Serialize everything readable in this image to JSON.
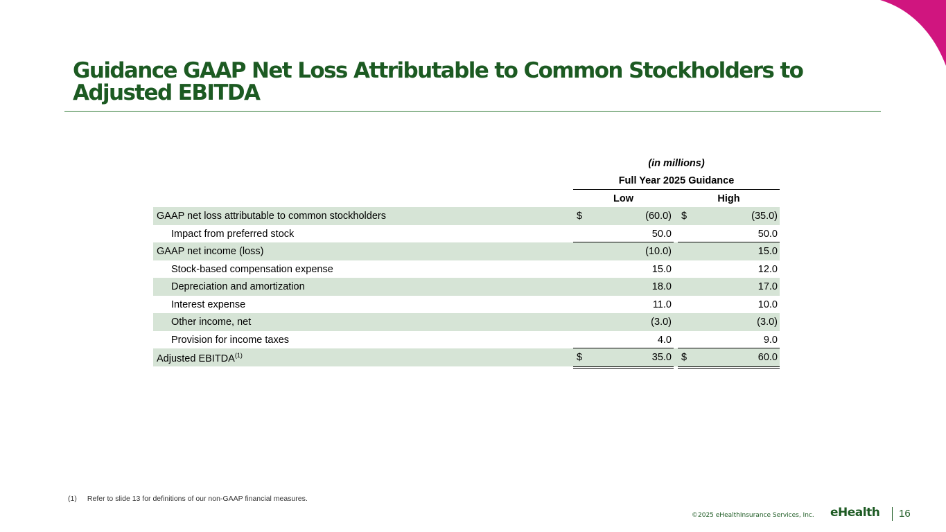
{
  "page": {
    "title": "Guidance GAAP Net Loss Attributable to Common Stockholders to Adjusted EBITDA",
    "accent_color": "#d0157f",
    "brand_color": "#1c5a22"
  },
  "table": {
    "units_label": "(in millions)",
    "group_header": "Full Year 2025 Guidance",
    "col_low": "Low",
    "col_high": "High",
    "rows": [
      {
        "label": "GAAP net loss attributable to common stockholders",
        "low_dollar": "$",
        "low": "(60.0)",
        "high_dollar": "$",
        "high": "(35.0)"
      },
      {
        "label": "Impact from preferred stock",
        "low": "50.0",
        "high": "50.0"
      },
      {
        "label": "GAAP net income (loss)",
        "low": "(10.0)",
        "high": "15.0"
      },
      {
        "label": "Stock-based compensation expense",
        "low": "15.0",
        "high": "12.0"
      },
      {
        "label": "Depreciation and amortization",
        "low": "18.0",
        "high": "17.0"
      },
      {
        "label": "Interest expense",
        "low": "11.0",
        "high": "10.0"
      },
      {
        "label": "Other income, net",
        "low": "(3.0)",
        "high": "(3.0)"
      },
      {
        "label": "Provision for income taxes",
        "low": "4.0",
        "high": "9.0"
      },
      {
        "label": "Adjusted EBITDA",
        "label_sup": "(1)",
        "low_dollar": "$",
        "low": "35.0",
        "high_dollar": "$",
        "high": "60.0"
      }
    ]
  },
  "footnote": {
    "number": "(1)",
    "text": "Refer to slide 13 for definitions of our non-GAAP financial measures."
  },
  "footer": {
    "copyright": "©2025 eHealthInsurance Services, Inc.",
    "brand": "eHealth",
    "page_number": "16"
  }
}
